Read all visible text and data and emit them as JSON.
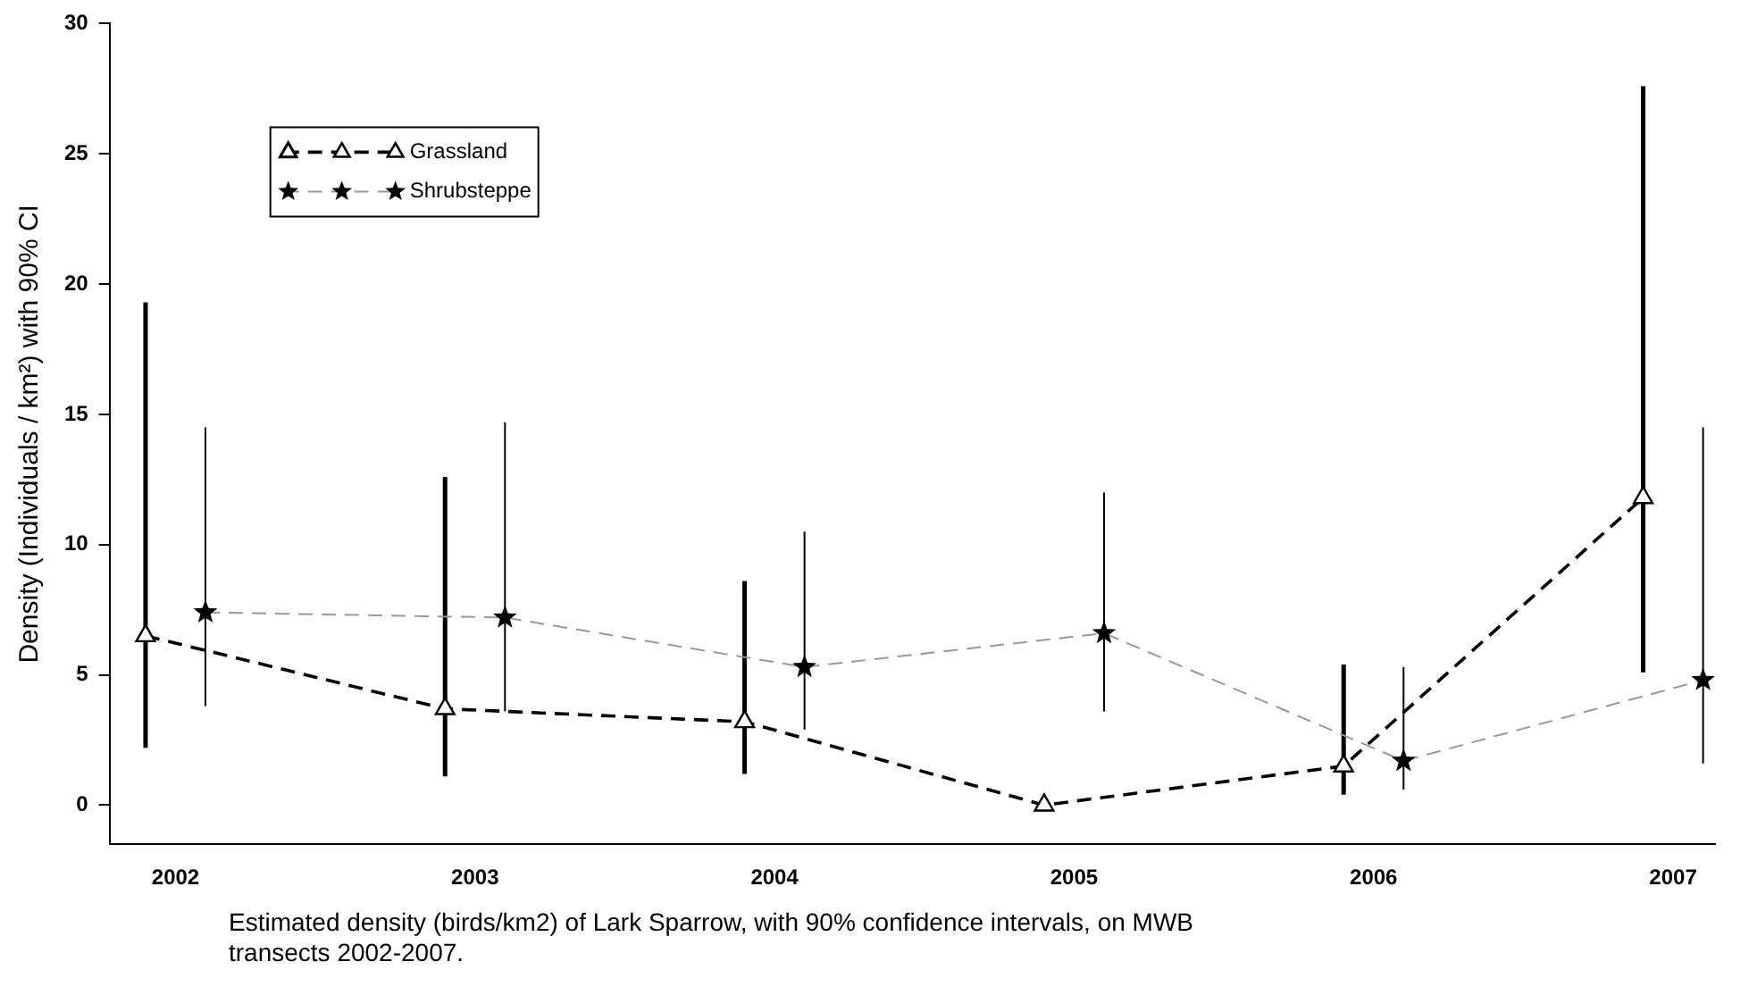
{
  "chart_data": {
    "type": "line",
    "ylabel": "Density (Individuals / km²) with 90% CI",
    "annotations": [
      "Estimated density (birds/km2) of Lark Sparrow, with 90% confidence intervals, on MWB transects 2002-2007."
    ],
    "xlim": [
      2001.78,
      2007.14
    ],
    "xticks": [
      2002,
      2003,
      2004,
      2005,
      2006,
      2007
    ],
    "ylim": [
      -1.5,
      30
    ],
    "yticks": [
      0,
      5,
      10,
      15,
      20,
      25,
      30
    ],
    "grid": false,
    "legend": "top left",
    "line_style": "dashed",
    "series": [
      {
        "name": "Grassland",
        "color": "#000000",
        "marker": "triangle",
        "x": [
          2001.9,
          2002.9,
          2003.9,
          2004.9,
          2005.9,
          2006.9
        ],
        "values": [
          6.5,
          3.7,
          3.2,
          0,
          1.5,
          11.8
        ],
        "errors": [
          [
            2.2,
            19.3
          ],
          [
            1.1,
            12.6
          ],
          [
            1.2,
            8.6
          ],
          null,
          [
            0.4,
            5.4
          ],
          [
            5.1,
            27.6
          ]
        ]
      },
      {
        "name": "Shrubsteppe",
        "color": "#999999",
        "marker": "star",
        "x": [
          2002.1,
          2003.1,
          2004.1,
          2005.1,
          2006.1,
          2007.1
        ],
        "values": [
          7.4,
          7.2,
          5.3,
          6.6,
          1.7,
          4.8
        ],
        "errors": [
          [
            3.8,
            14.5
          ],
          [
            3.6,
            14.7
          ],
          [
            2.9,
            10.5
          ],
          [
            3.6,
            12.0
          ],
          [
            0.6,
            5.3
          ],
          [
            1.6,
            14.5
          ]
        ]
      }
    ]
  }
}
